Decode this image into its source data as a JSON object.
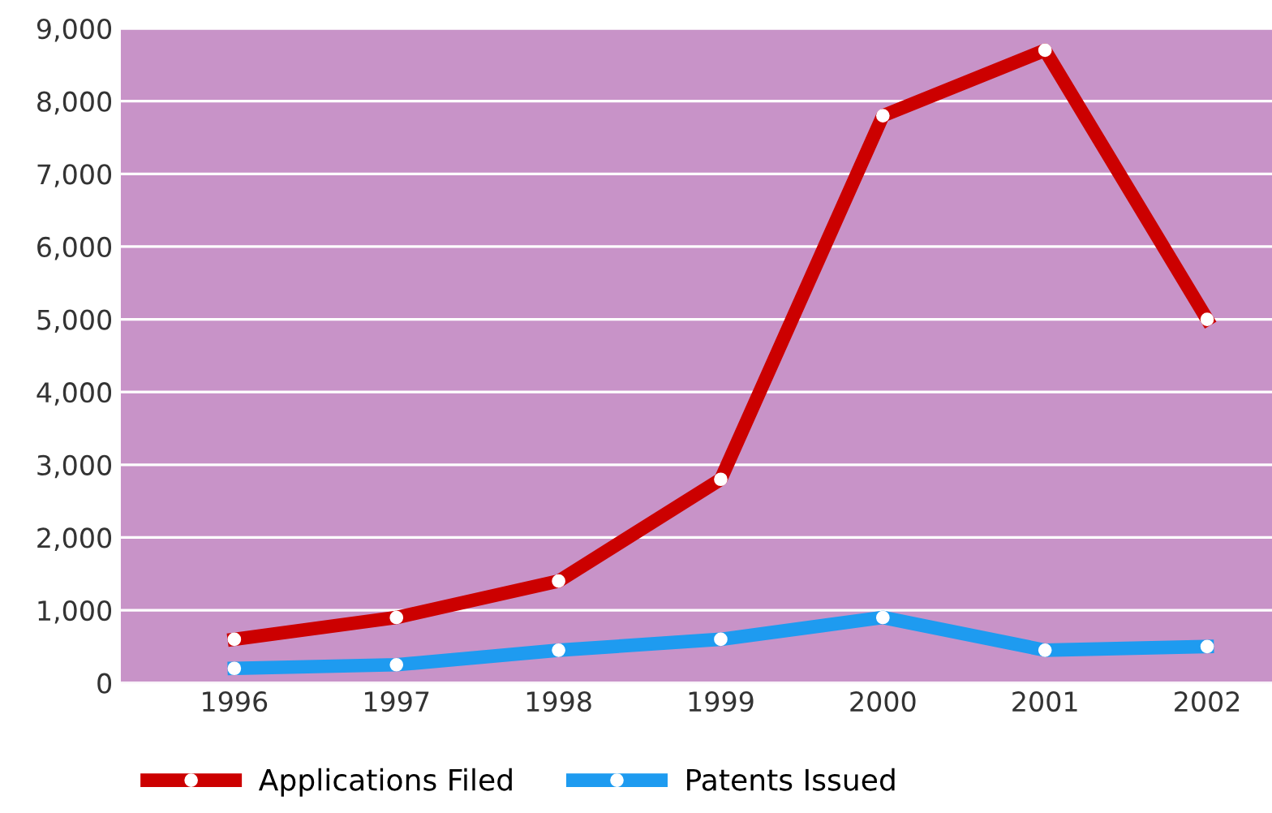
{
  "chart_data": {
    "type": "line",
    "categories": [
      "1996",
      "1997",
      "1998",
      "1999",
      "2000",
      "2001",
      "2002"
    ],
    "series": [
      {
        "name": "Applications Filed",
        "color": "#cc0000",
        "values": [
          600,
          900,
          1400,
          2800,
          7800,
          8700,
          5000
        ]
      },
      {
        "name": "Patents Issued",
        "color": "#1e9bf0",
        "values": [
          200,
          250,
          450,
          600,
          900,
          450,
          500
        ]
      }
    ],
    "ylim": [
      0,
      9000
    ],
    "yticks": [
      0,
      {
        "value": 1000,
        "label": "1,000"
      },
      {
        "value": 2000,
        "label": "2,000"
      },
      {
        "value": 3000,
        "label": "3,000"
      },
      {
        "value": 4000,
        "label": "4,000"
      },
      {
        "value": 5000,
        "label": "5,000"
      },
      {
        "value": 6000,
        "label": "6,000"
      },
      {
        "value": 7000,
        "label": "7,000"
      },
      {
        "value": 8000,
        "label": "8,000"
      },
      {
        "value": 9000,
        "label": "9,000"
      }
    ],
    "grid": "y",
    "legend": "bottom",
    "marker": "circle",
    "line_style": "solid"
  }
}
